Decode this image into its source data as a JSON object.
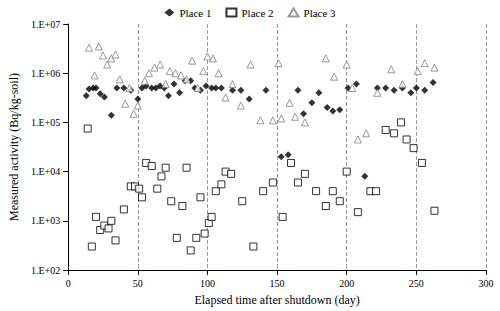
{
  "chart_data": {
    "type": "scatter",
    "x_label": "Elapsed time after shutdown (day)",
    "y_label": "Measured activity (Bq/kg-soil)",
    "xlim": [
      0,
      300
    ],
    "xticks": [
      0,
      50,
      100,
      150,
      200,
      250,
      300
    ],
    "ylim": [
      100,
      10000000
    ],
    "yticks": [
      {
        "value": 100,
        "label": "1.E+02"
      },
      {
        "value": 1000,
        "label": "1.E+03"
      },
      {
        "value": 10000,
        "label": "1.E+04"
      },
      {
        "value": 100000,
        "label": "1.E+05"
      },
      {
        "value": 1000000,
        "label": "1.E+06"
      },
      {
        "value": 10000000,
        "label": "1.E+07"
      }
    ],
    "log": "y",
    "grid": true,
    "legend": "top",
    "series": [
      {
        "name": "Place 1",
        "color": "#000000",
        "marker": "diamond",
        "x": [
          13,
          15,
          18,
          20,
          23,
          26,
          31,
          35,
          40,
          45,
          50,
          53,
          56,
          60,
          63,
          66,
          69,
          72,
          76,
          80,
          84,
          88,
          91,
          95,
          99,
          103,
          106,
          110,
          118,
          124,
          130,
          142,
          153,
          158,
          165,
          169,
          175,
          180,
          186,
          190,
          195,
          201,
          207,
          213,
          222,
          228,
          234,
          240,
          246,
          250,
          256,
          262
        ],
        "values": [
          350000,
          480000,
          500000,
          500000,
          380000,
          330000,
          140000,
          500000,
          500000,
          450000,
          300000,
          500000,
          550000,
          500000,
          500000,
          550000,
          500000,
          350000,
          600000,
          400000,
          700000,
          700000,
          500000,
          450000,
          550000,
          500000,
          500000,
          500000,
          450000,
          450000,
          300000,
          450000,
          20000,
          22000,
          450000,
          150000,
          250000,
          400000,
          200000,
          170000,
          180000,
          500000,
          600000,
          8000,
          500000,
          500000,
          450000,
          500000,
          400000,
          500000,
          450000,
          650000
        ]
      },
      {
        "name": "Place 2",
        "color": "#000000",
        "marker": "square-open",
        "x": [
          14,
          17,
          20,
          23,
          26,
          29,
          31,
          34,
          40,
          45,
          48,
          51,
          53,
          56,
          60,
          64,
          67,
          70,
          74,
          78,
          82,
          85,
          88,
          92,
          95,
          98,
          101,
          103,
          106,
          110,
          113,
          117,
          125,
          133,
          140,
          147,
          154,
          160,
          165,
          170,
          178,
          185,
          190,
          195,
          200,
          208,
          217,
          221,
          228,
          234,
          239,
          243,
          248,
          254,
          263
        ],
        "values": [
          75000,
          300,
          1200,
          650,
          800,
          700,
          1000,
          400,
          1700,
          5000,
          5000,
          4500,
          3000,
          15000,
          13000,
          4500,
          8000,
          12000,
          2500,
          450,
          2000,
          12000,
          250,
          450,
          3000,
          550,
          900,
          1200,
          4000,
          5500,
          10000,
          9000,
          2500,
          300,
          4000,
          6000,
          1200,
          15000,
          6000,
          9000,
          4000,
          2000,
          4000,
          2500,
          10000,
          1500,
          4000,
          4000,
          70000,
          60000,
          100000,
          45000,
          30000,
          15000,
          1600
        ]
      },
      {
        "name": "Place 3",
        "color": "#808080",
        "marker": "triangle-open",
        "x": [
          15,
          19,
          22,
          25,
          28,
          31,
          34,
          37,
          41,
          44,
          47,
          50,
          55,
          58,
          62,
          66,
          70,
          73,
          77,
          81,
          85,
          89,
          93,
          97,
          100,
          104,
          108,
          113,
          118,
          124,
          131,
          138,
          147,
          151,
          153,
          159,
          163,
          170,
          185,
          191,
          200,
          204,
          208,
          214,
          222,
          232,
          240,
          251,
          256,
          263
        ],
        "values": [
          3300000,
          900000,
          3500000,
          2300000,
          1500000,
          2000000,
          2400000,
          750000,
          240000,
          500000,
          150000,
          220000,
          700000,
          1000000,
          1300000,
          1500000,
          600000,
          1100000,
          1000000,
          900000,
          750000,
          1800000,
          500000,
          1100000,
          2200000,
          2000000,
          1000000,
          320000,
          600000,
          220000,
          1500000,
          110000,
          110000,
          1600000,
          120000,
          250000,
          130000,
          100000,
          2000000,
          850000,
          1500000,
          500000,
          45000,
          60000,
          400000,
          1200000,
          600000,
          1100000,
          1600000,
          1300000
        ]
      }
    ]
  }
}
